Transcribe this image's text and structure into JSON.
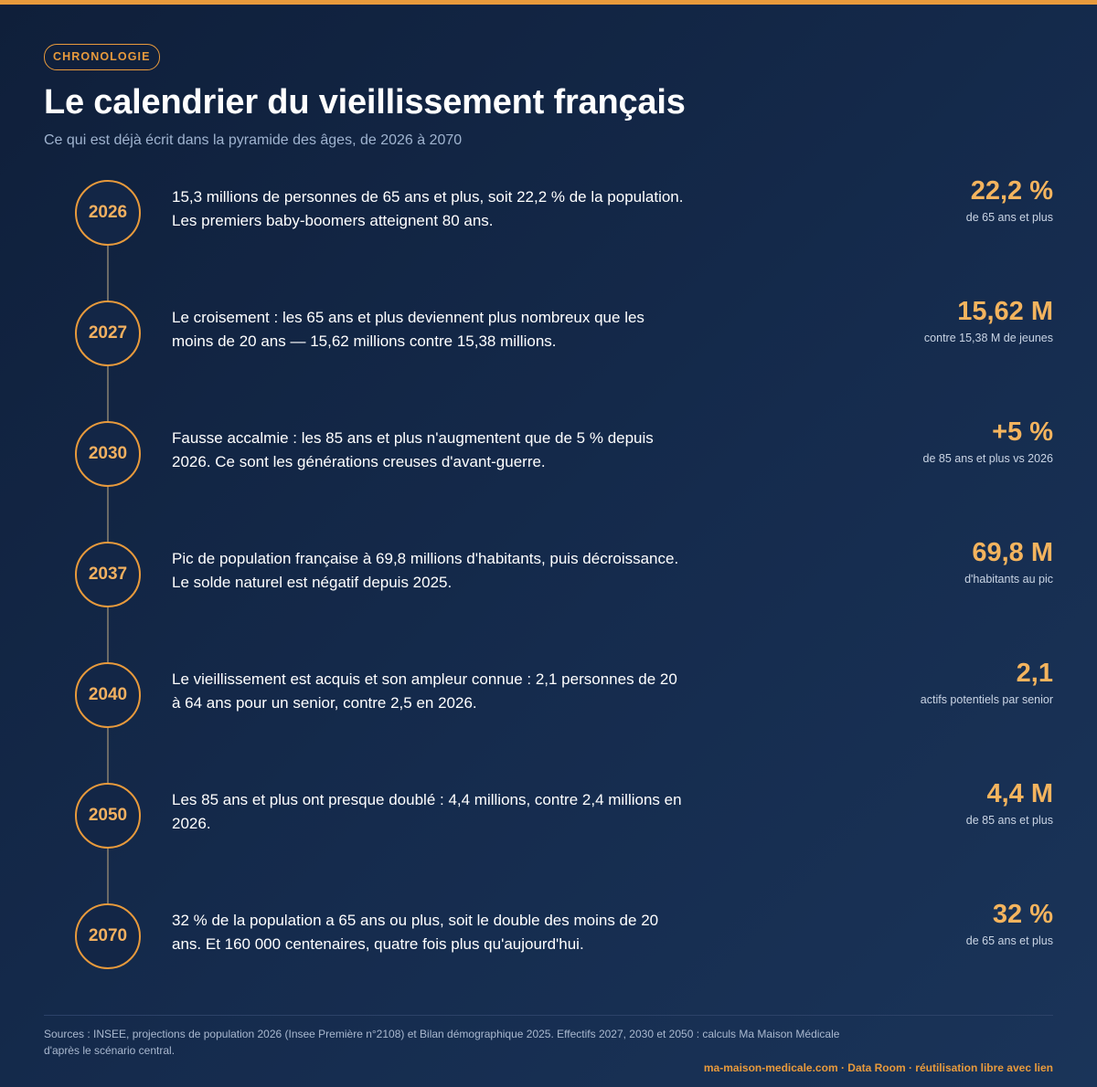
{
  "header": {
    "badge": "CHRONOLOGIE",
    "title": "Le calendrier du vieillissement français",
    "subtitle": "Ce qui est déjà écrit dans la pyramide des âges, de 2026 à 2070"
  },
  "timeline": [
    {
      "year": "2026",
      "description": "15,3 millions de personnes de 65 ans et plus, soit 22,2 % de la population. Les premiers baby-boomers atteignent 80 ans.",
      "stat_value": "22,2 %",
      "stat_label": "de 65 ans et plus"
    },
    {
      "year": "2027",
      "description": "Le croisement : les 65 ans et plus deviennent plus nombreux que les moins de 20 ans — 15,62 millions contre 15,38 millions.",
      "stat_value": "15,62 M",
      "stat_label": "contre 15,38 M de jeunes"
    },
    {
      "year": "2030",
      "description": "Fausse accalmie : les 85 ans et plus n'augmentent que de 5 % depuis 2026. Ce sont les générations creuses d'avant-guerre.",
      "stat_value": "+5 %",
      "stat_label": "de 85 ans et plus vs 2026"
    },
    {
      "year": "2037",
      "description": "Pic de population française à 69,8 millions d'habitants, puis décroissance. Le solde naturel est négatif depuis 2025.",
      "stat_value": "69,8 M",
      "stat_label": "d'habitants au pic"
    },
    {
      "year": "2040",
      "description": "Le vieillissement est acquis et son ampleur connue : 2,1 personnes de 20 à 64 ans pour un senior, contre 2,5 en 2026.",
      "stat_value": "2,1",
      "stat_label": "actifs potentiels par senior"
    },
    {
      "year": "2050",
      "description": "Les 85 ans et plus ont presque doublé : 4,4 millions, contre 2,4 millions en 2026.",
      "stat_value": "4,4 M",
      "stat_label": "de 85 ans et plus"
    },
    {
      "year": "2070",
      "description": "32 % de la population a 65 ans ou plus, soit le double des moins de 20 ans. Et 160 000 centenaires, quatre fois plus qu'aujourd'hui.",
      "stat_value": "32 %",
      "stat_label": "de 65 ans et plus"
    }
  ],
  "footer": {
    "sources": "Sources : INSEE, projections de population 2026 (Insee Première n°2108) et Bilan démographique 2025. Effectifs 2027, 2030 et 2050 : calculs Ma Maison Médicale d'après le scénario central.",
    "link": "ma-maison-medicale.com · Data Room · réutilisation libre avec lien"
  },
  "colors": {
    "accent": "#e89a3c",
    "stat": "#f4b45e",
    "background": "#12233f"
  }
}
